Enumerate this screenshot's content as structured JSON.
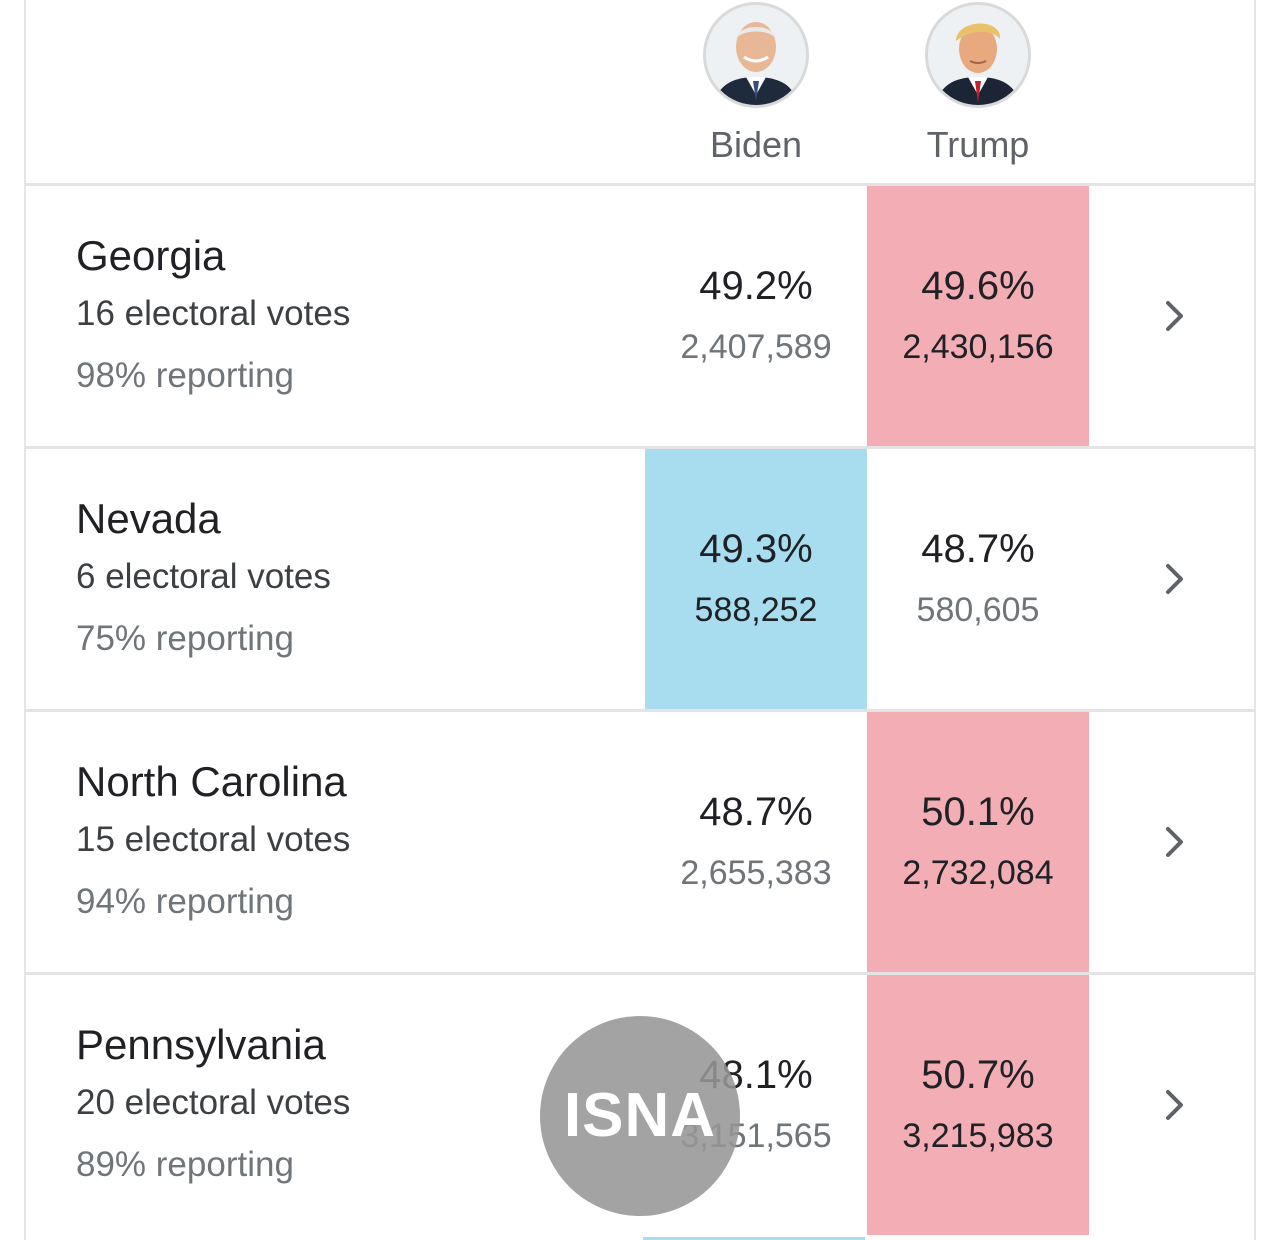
{
  "candidates": {
    "biden": {
      "name": "Biden",
      "color": "#a8ddf0"
    },
    "trump": {
      "name": "Trump",
      "color": "#f2adb5"
    }
  },
  "states": [
    {
      "name": "Georgia",
      "electoral": "16 electoral votes",
      "reporting": "98% reporting",
      "biden": {
        "pct": "49.2%",
        "votes": "2,407,589"
      },
      "trump": {
        "pct": "49.6%",
        "votes": "2,430,156"
      },
      "leader": "trump"
    },
    {
      "name": "Nevada",
      "electoral": "6 electoral votes",
      "reporting": "75% reporting",
      "biden": {
        "pct": "49.3%",
        "votes": "588,252"
      },
      "trump": {
        "pct": "48.7%",
        "votes": "580,605"
      },
      "leader": "biden"
    },
    {
      "name": "North Carolina",
      "electoral": "15 electoral votes",
      "reporting": "94% reporting",
      "biden": {
        "pct": "48.7%",
        "votes": "2,655,383"
      },
      "trump": {
        "pct": "50.1%",
        "votes": "2,732,084"
      },
      "leader": "trump"
    },
    {
      "name": "Pennsylvania",
      "electoral": "20 electoral votes",
      "reporting": "89% reporting",
      "biden": {
        "pct": "48.1%",
        "votes": "3,151,565"
      },
      "trump": {
        "pct": "50.7%",
        "votes": "3,215,983"
      },
      "leader": "trump"
    }
  ],
  "icons": {
    "row_action": "chevron-right-icon"
  },
  "watermark": {
    "text": "ISNA"
  }
}
